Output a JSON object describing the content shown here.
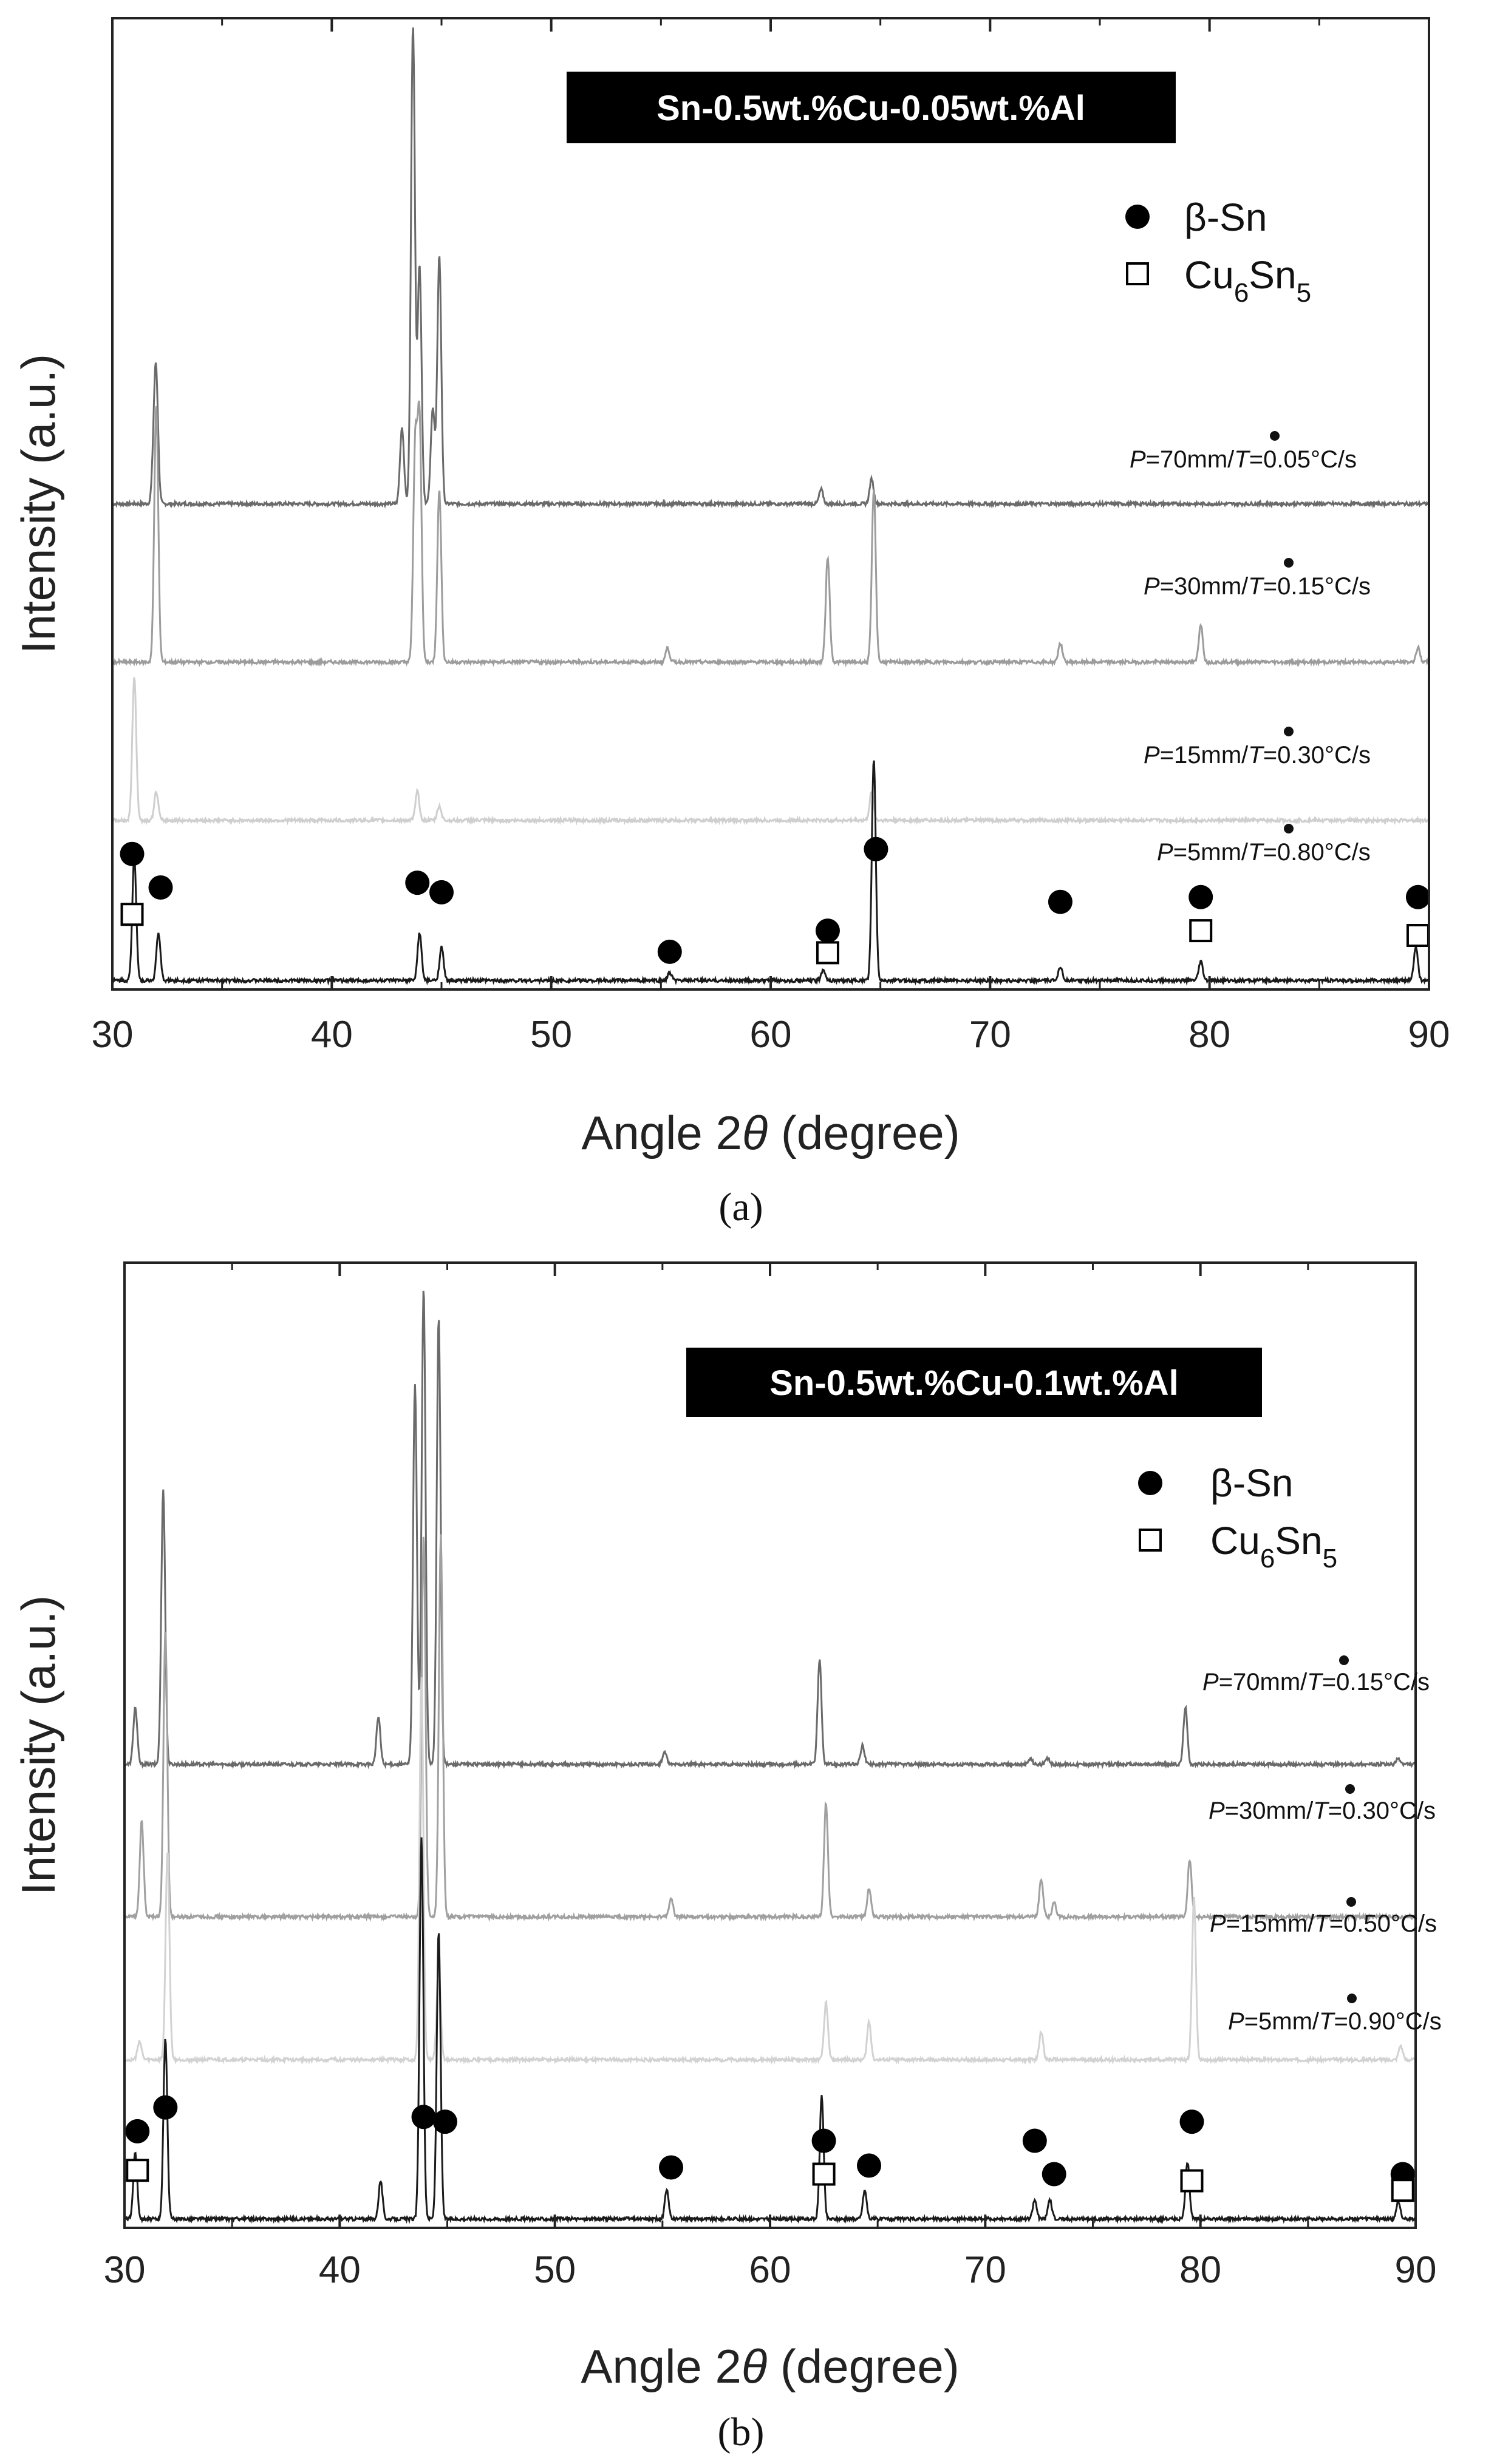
{
  "chart_data": [
    {
      "type": "line",
      "panel_label": "(a)",
      "title": "Sn-0.5wt.%Cu-0.05wt.%Al",
      "xlabel_prefix": "Angle 2",
      "xlabel_symbol": "θ",
      "xlabel_suffix": " (degree)",
      "ylabel": "Intensity (a.u.)",
      "xlim": [
        30,
        90
      ],
      "xticks": [
        30,
        40,
        50,
        60,
        70,
        80,
        90
      ],
      "legend": {
        "beta": "β-Sn",
        "cu_main": "Cu",
        "cu_sub1": "6",
        "cu_mid": "Sn",
        "cu_sub2": "5"
      },
      "ylim": [
        0,
        100
      ],
      "series": [
        {
          "name": "P=70mm/T=0.05°C/s",
          "cond": {
            "p": "P",
            "pos": "=70mm/",
            "t": "T",
            "rate": "=0.05°C/s"
          },
          "color": "#6a6a6a",
          "baseline": 50,
          "peaks": [
            [
              31.9,
              4.5
            ],
            [
              32.0,
              12
            ],
            [
              43.2,
              8
            ],
            [
              43.7,
              50
            ],
            [
              44.0,
              25
            ],
            [
              44.6,
              10
            ],
            [
              44.9,
              26
            ],
            [
              62.3,
              1.5
            ],
            [
              64.6,
              2.6
            ]
          ]
        },
        {
          "name": "P=30mm/T=0.15°C/s",
          "cond": {
            "p": "P",
            "pos": "=30mm/",
            "t": "T",
            "rate": "=0.15°C/s"
          },
          "color": "#9c9c9c",
          "baseline": 33.5,
          "peaks": [
            [
              32.0,
              27
            ],
            [
              43.8,
              22
            ],
            [
              44.0,
              25
            ],
            [
              44.9,
              18
            ],
            [
              55.3,
              1.5
            ],
            [
              62.6,
              11
            ],
            [
              64.7,
              18
            ],
            [
              73.2,
              2
            ],
            [
              79.6,
              4
            ],
            [
              89.5,
              1.5
            ]
          ]
        },
        {
          "name": "P=15mm/T=0.30°C/s",
          "cond": {
            "p": "P",
            "pos": "=15mm/",
            "t": "T",
            "rate": "=0.30°C/s"
          },
          "color": "#cfcfcf",
          "baseline": 17,
          "peaks": [
            [
              31.0,
              15
            ],
            [
              32.0,
              3
            ],
            [
              43.9,
              3
            ],
            [
              44.9,
              1.5
            ],
            [
              64.6,
              3
            ]
          ]
        },
        {
          "name": "P=5mm/T=0.80°C/s",
          "cond": {
            "p": "P",
            "pos": "=5mm/",
            "t": "T",
            "rate": "=0.80°C/s"
          },
          "color": "#1a1a1a",
          "baseline": 0.3,
          "peaks": [
            [
              31.0,
              13
            ],
            [
              32.1,
              5
            ],
            [
              44.0,
              5
            ],
            [
              45.0,
              3.5
            ],
            [
              55.4,
              0.8
            ],
            [
              62.4,
              1.2
            ],
            [
              64.7,
              23
            ],
            [
              73.2,
              1.5
            ],
            [
              79.6,
              2
            ],
            [
              89.4,
              3.5
            ]
          ]
        }
      ],
      "markers": {
        "beta_sn": [
          [
            30.9,
            13.5
          ],
          [
            32.2,
            10
          ],
          [
            43.9,
            10.5
          ],
          [
            45.0,
            9.5
          ],
          [
            55.4,
            3.3
          ],
          [
            62.6,
            5.5
          ],
          [
            64.8,
            14
          ],
          [
            73.2,
            8.5
          ],
          [
            79.6,
            9
          ],
          [
            89.5,
            9
          ]
        ],
        "cu6sn5": [
          [
            30.9,
            7.2
          ],
          [
            62.6,
            3.2
          ],
          [
            79.6,
            5.5
          ],
          [
            89.5,
            5
          ]
        ]
      }
    },
    {
      "type": "line",
      "panel_label": "(b)",
      "title": "Sn-0.5wt.%Cu-0.1wt.%Al",
      "xlabel_prefix": "Angle 2",
      "xlabel_symbol": "θ",
      "xlabel_suffix": " (degree)",
      "ylabel": "Intensity (a.u.)",
      "xlim": [
        30,
        90
      ],
      "xticks": [
        30,
        40,
        50,
        60,
        70,
        80,
        90
      ],
      "legend": {
        "beta": "β-Sn",
        "cu_main": "Cu",
        "cu_sub1": "6",
        "cu_mid": "Sn",
        "cu_sub2": "5"
      },
      "ylim": [
        0,
        100
      ],
      "series": [
        {
          "name": "P=70mm/T=0.15°C/s",
          "cond": {
            "p": "P",
            "pos": "=70mm/",
            "t": "T",
            "rate": "=0.15°C/s"
          },
          "color": "#6a6a6a",
          "baseline": 48,
          "peaks": [
            [
              30.5,
              6
            ],
            [
              31.8,
              29
            ],
            [
              41.8,
              5
            ],
            [
              43.5,
              40
            ],
            [
              43.9,
              50
            ],
            [
              44.6,
              47
            ],
            [
              55.1,
              1.3
            ],
            [
              62.3,
              11
            ],
            [
              64.3,
              2
            ],
            [
              72.1,
              0.6
            ],
            [
              72.9,
              0.6
            ],
            [
              79.3,
              6
            ],
            [
              89.2,
              0.6
            ]
          ]
        },
        {
          "name": "P=30mm/T=0.30°C/s",
          "cond": {
            "p": "P",
            "pos": "=30mm/",
            "t": "T",
            "rate": "=0.30°C/s"
          },
          "color": "#a0a0a0",
          "baseline": 32,
          "peaks": [
            [
              30.8,
              10
            ],
            [
              31.9,
              30
            ],
            [
              43.9,
              40
            ],
            [
              44.7,
              40
            ],
            [
              55.4,
              2
            ],
            [
              62.6,
              12
            ],
            [
              64.6,
              3
            ],
            [
              72.6,
              4
            ],
            [
              73.2,
              1.5
            ],
            [
              79.5,
              6
            ]
          ]
        },
        {
          "name": "P=15mm/T=0.50°C/s",
          "cond": {
            "p": "P",
            "pos": "=15mm/",
            "t": "T",
            "rate": "=0.50°C/s"
          },
          "color": "#d2d2d2",
          "baseline": 17,
          "peaks": [
            [
              30.7,
              2
            ],
            [
              32.0,
              22
            ],
            [
              43.8,
              40
            ],
            [
              44.6,
              10
            ],
            [
              62.6,
              6
            ],
            [
              64.6,
              4
            ],
            [
              72.6,
              3
            ],
            [
              79.7,
              17
            ],
            [
              89.3,
              1.5
            ]
          ]
        },
        {
          "name": "P=5mm/T=0.90°C/s",
          "cond": {
            "p": "P",
            "pos": "=5mm/",
            "t": "T",
            "rate": "=0.90°C/s"
          },
          "color": "#1a1a1a",
          "baseline": 0.3,
          "peaks": [
            [
              30.5,
              7
            ],
            [
              31.9,
              19
            ],
            [
              41.9,
              4
            ],
            [
              43.8,
              40
            ],
            [
              44.6,
              30
            ],
            [
              55.2,
              3
            ],
            [
              62.4,
              13
            ],
            [
              64.4,
              3
            ],
            [
              72.3,
              2
            ],
            [
              73.0,
              2
            ],
            [
              79.4,
              6
            ],
            [
              89.2,
              1.8
            ]
          ]
        }
      ],
      "markers": {
        "beta_sn": [
          [
            30.6,
            9.5
          ],
          [
            31.9,
            12
          ],
          [
            43.9,
            11
          ],
          [
            44.9,
            10.5
          ],
          [
            55.4,
            5.7
          ],
          [
            62.5,
            8.5
          ],
          [
            64.6,
            5.9
          ],
          [
            72.3,
            8.5
          ],
          [
            73.2,
            5
          ],
          [
            79.6,
            10.5
          ],
          [
            89.4,
            5
          ]
        ],
        "cu6sn5": [
          [
            30.6,
            5.4
          ],
          [
            62.5,
            5
          ],
          [
            79.6,
            4.3
          ],
          [
            89.4,
            3.3
          ]
        ]
      }
    }
  ]
}
